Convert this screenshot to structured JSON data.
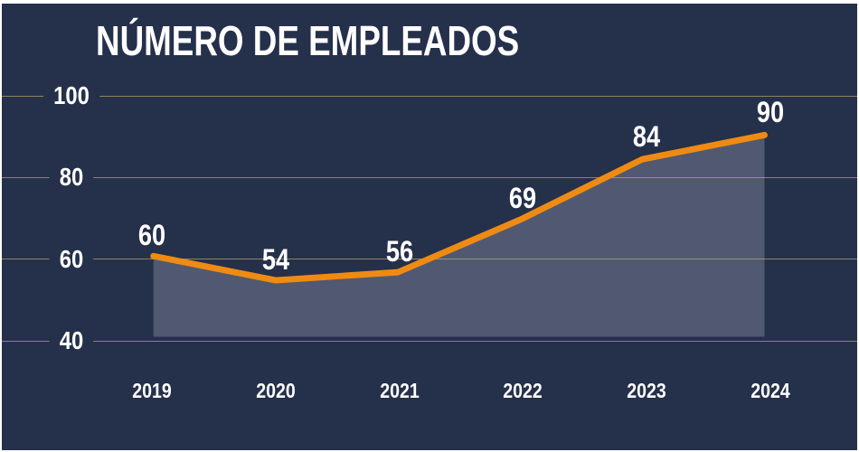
{
  "chart_data": {
    "type": "line",
    "title": "NÚMERO DE EMPLEADOS",
    "categories": [
      "2019",
      "2020",
      "2021",
      "2022",
      "2023",
      "2024"
    ],
    "values": [
      60,
      54,
      56,
      69,
      84,
      90
    ],
    "xlabel": "",
    "ylabel": "",
    "ylim": [
      40,
      100
    ],
    "yticks": [
      100,
      80,
      60,
      40
    ],
    "grid": true,
    "legend": "none",
    "area_fill": true,
    "style": {
      "background": "#25304B",
      "frame_border": "#FFFFFF",
      "line_color": "#EF8B12",
      "area_color": "rgba(170,178,196,0.32)",
      "gridline_color": "#9D8C64",
      "text_color": "#FFFFFF"
    }
  }
}
